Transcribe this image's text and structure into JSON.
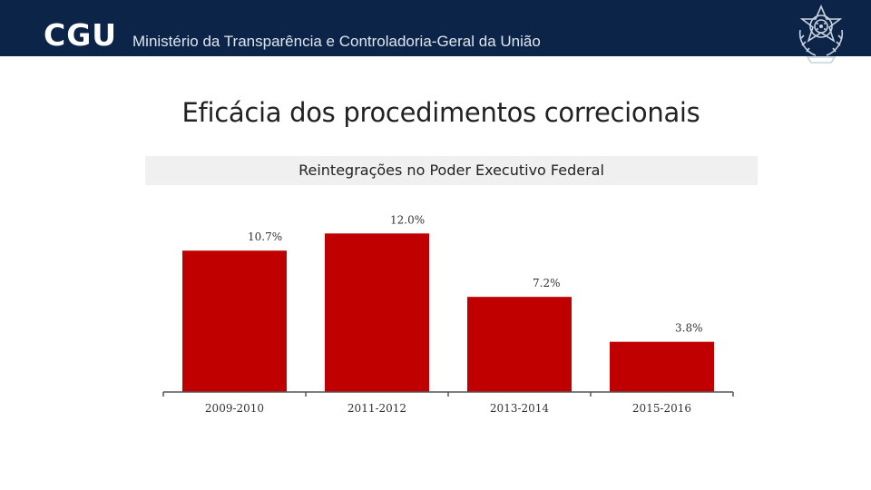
{
  "header": {
    "logo_text": "CGU",
    "org_name": "Ministério da Transparência e Controladoria-Geral da União",
    "background_color": "#0b2447",
    "emblem_icon": "brazil-coat-of-arms-icon"
  },
  "slide": {
    "title": "Eficácia dos procedimentos correcionais"
  },
  "chart_data": {
    "type": "bar",
    "title": "Reintegrações no Poder Executivo Federal",
    "categories": [
      "2009-2010",
      "2011-2012",
      "2013-2014",
      "2015-2016"
    ],
    "values": [
      10.7,
      12.0,
      7.2,
      3.8
    ],
    "value_labels": [
      "10.7%",
      "12.0%",
      "7.2%",
      "3.8%"
    ],
    "unit": "%",
    "xlabel": "",
    "ylabel": "",
    "ylim": [
      0,
      12.5
    ],
    "bar_color": "#c00000",
    "grid": false,
    "legend": "none"
  }
}
